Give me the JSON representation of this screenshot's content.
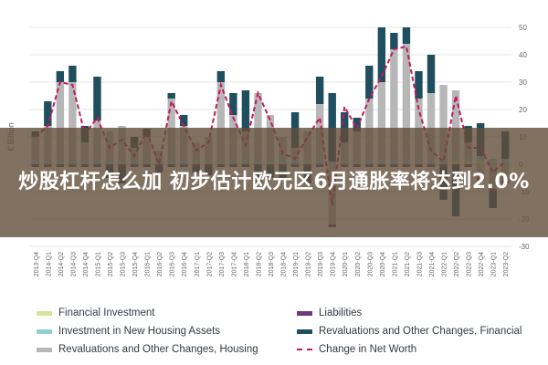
{
  "banner": {
    "title": "炒股杠杆怎么加 初步估计欧元区6月通胀率将达到2.0%"
  },
  "chart_data": {
    "type": "bar",
    "ylabel": "€ Billion",
    "ylim": [
      -30,
      50
    ],
    "yticks": [
      50,
      40,
      30,
      20,
      10,
      0,
      -10,
      -20,
      -30
    ],
    "grid": true,
    "legend_position": "bottom",
    "categories": [
      "2013-Q4",
      "2014-Q1",
      "2014-Q2",
      "2014-Q3",
      "2014-Q4",
      "2015-Q1",
      "2015-Q2",
      "2015-Q3",
      "2015-Q4",
      "2016-Q1",
      "2016-Q2",
      "2016-Q3",
      "2016-Q4",
      "2017-Q1",
      "2017-Q2",
      "2017-Q3",
      "2017-Q4",
      "2018-Q1",
      "2018-Q2",
      "2018-Q3",
      "2018-Q4",
      "2019-Q1",
      "2019-Q2",
      "2019-Q3",
      "2019-Q4",
      "2020-Q1",
      "2020-Q2",
      "2020-Q3",
      "2020-Q4",
      "2021-Q1",
      "2021-Q2",
      "2021-Q3",
      "2021-Q4",
      "2022-Q1",
      "2022-Q2",
      "2022-Q3",
      "2022-Q4",
      "2023-Q1",
      "2023-Q2"
    ],
    "series": [
      {
        "name": "Financial Investment",
        "color": "#d6e39a",
        "values": [
          0,
          0,
          0,
          0,
          0,
          0,
          0,
          0,
          0,
          0,
          0,
          0,
          0,
          0,
          0,
          0,
          0,
          0,
          0,
          0,
          0,
          0,
          0,
          0,
          0,
          0,
          0,
          0,
          0,
          0,
          0,
          0,
          0,
          0,
          1,
          1,
          1,
          0,
          0
        ]
      },
      {
        "name": "Investment in New Housing Assets",
        "color": "#8fcfcf",
        "values": [
          2,
          2,
          2,
          2,
          2,
          2,
          2,
          2,
          2,
          2,
          2,
          2,
          2,
          2,
          2,
          2,
          2,
          2,
          2,
          2,
          2,
          2,
          2,
          2,
          1,
          2,
          2,
          2,
          2,
          2,
          2,
          2,
          2,
          2,
          2,
          2,
          2,
          2,
          2
        ]
      },
      {
        "name": "Revaluations and Other Changes, Housing",
        "color": "#b7b7b7",
        "values": [
          8,
          12,
          28,
          28,
          6,
          14,
          10,
          12,
          4,
          8,
          3,
          22,
          12,
          6,
          8,
          28,
          16,
          10,
          24,
          16,
          8,
          4,
          10,
          20,
          -22,
          6,
          10,
          22,
          28,
          40,
          42,
          22,
          24,
          27,
          24,
          5,
          -5,
          -9,
          -6
        ]
      },
      {
        "name": "Liabilities",
        "color": "#6a3d7a",
        "values": [
          -1,
          -1,
          -1,
          -1,
          -1,
          -1,
          -1,
          -1,
          -1,
          -1,
          -1,
          -1,
          -1,
          -1,
          -1,
          -1,
          -1,
          -1,
          -1,
          -1,
          -1,
          -1,
          -1,
          -1,
          -1,
          -1,
          -1,
          -1,
          -1,
          -1,
          -1,
          -1,
          -1,
          -1,
          -1,
          -1,
          -1,
          -1,
          -1
        ]
      },
      {
        "name": "Revaluations and Other Changes, Financial",
        "color": "#1f4e5f",
        "values": [
          2,
          9,
          4,
          6,
          6,
          16,
          -4,
          -6,
          4,
          3,
          -2,
          2,
          4,
          -2,
          -3,
          4,
          8,
          15,
          -6,
          -4,
          -5,
          13,
          -6,
          10,
          25,
          11,
          5,
          12,
          20,
          6,
          6,
          10,
          14,
          -12,
          -18,
          6,
          12,
          -6,
          10
        ]
      }
    ],
    "line_series": {
      "name": "Change in Net Worth",
      "color": "#c2185b",
      "values": [
        10,
        14,
        30,
        29,
        11,
        17,
        6,
        9,
        3,
        12,
        0,
        23,
        14,
        5,
        8,
        29,
        17,
        7,
        26,
        16,
        4,
        2,
        10,
        17,
        -15,
        21,
        13,
        24,
        32,
        42,
        43,
        20,
        5,
        1,
        25,
        6,
        6,
        -3,
        1
      ]
    }
  },
  "legend": {
    "items": [
      {
        "label": "Financial Investment",
        "kind": "bar",
        "color": "#d6e39a"
      },
      {
        "label": "Liabilities",
        "kind": "bar",
        "color": "#6a3d7a"
      },
      {
        "label": "Investment in New Housing Assets",
        "kind": "bar",
        "color": "#8fcfcf"
      },
      {
        "label": "Revaluations and Other Changes, Financial",
        "kind": "bar",
        "color": "#1f4e5f"
      },
      {
        "label": "Revaluations and Other Changes, Housing",
        "kind": "bar",
        "color": "#b7b7b7"
      },
      {
        "label": "Change in Net Worth",
        "kind": "line",
        "color": "#c2185b"
      }
    ]
  }
}
